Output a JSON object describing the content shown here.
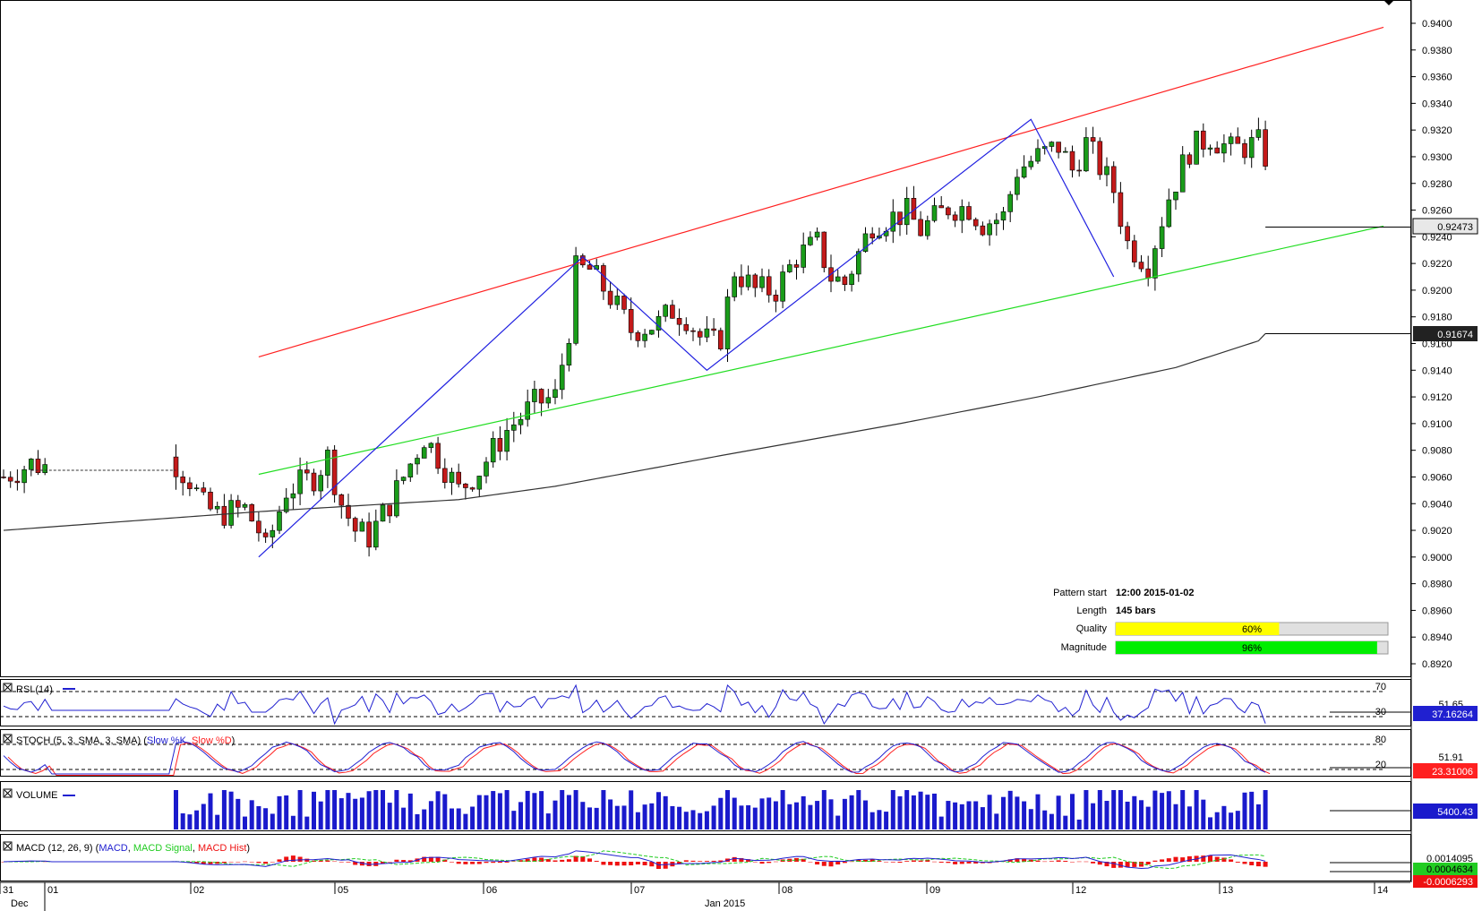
{
  "colors": {
    "bull": "#1a9c1a",
    "bear": "#c41a1a",
    "ma": "#333333",
    "channel_upper": "#ff2020",
    "channel_lower": "#22dd22",
    "zigzag": "#2020e0",
    "rsi": "#2020d0",
    "stoch_k": "#2020d0",
    "stoch_d": "#ff2020",
    "volume": "#1a1acc",
    "macd": "#2020d0",
    "macd_signal": "#22cc22",
    "macd_hist": "#ee1111",
    "quality": "#ffff00",
    "magnitude": "#00ee00"
  },
  "price_axis": {
    "ticks": [
      "0.9400",
      "0.9380",
      "0.9360",
      "0.9340",
      "0.9320",
      "0.9300",
      "0.9280",
      "0.9260",
      "0.9240",
      "0.9220",
      "0.9200",
      "0.9180",
      "0.9160",
      "0.9140",
      "0.9120",
      "0.9100",
      "0.9080",
      "0.9060",
      "0.9040",
      "0.9020",
      "0.9000",
      "0.8980",
      "0.8960",
      "0.8940",
      "0.8920"
    ],
    "current_price": "0.92473",
    "ma_value": "0.91674"
  },
  "pattern_info": {
    "start_label": "Pattern start",
    "start_value": "12:00 2015-01-02",
    "length_label": "Length",
    "length_value": "145 bars",
    "quality_label": "Quality",
    "quality_value": "60%",
    "quality_fraction": 0.6,
    "magnitude_label": "Magnitude",
    "magnitude_value": "96%",
    "magnitude_fraction": 0.96
  },
  "rsi_panel": {
    "title": "RSI (14)",
    "level_high": "70",
    "level_low": "30",
    "mid_value": "51.65",
    "current": "37.16264"
  },
  "stoch_panel": {
    "title_prefix": "STOCH (5, 3, SMA, 3, SMA) (",
    "k_label": "Slow %K",
    "sep": ", ",
    "d_label": "Slow %D",
    "title_suffix": ")",
    "level_high": "80",
    "level_low": "20",
    "mid_value": "51.91",
    "current": "23.31006"
  },
  "volume_panel": {
    "title": "VOLUME",
    "current": "5400.43"
  },
  "macd_panel": {
    "title_prefix": "MACD (12, 26, 9) (",
    "macd_label": "MACD",
    "sep": ", ",
    "signal_label": "MACD Signal",
    "hist_label": "MACD Hist",
    "title_suffix": ")",
    "upper_value": "0.0014095",
    "signal_value": "0.0004634",
    "hist_value": "-0.0006293"
  },
  "x_axis": {
    "day_labels": [
      "31",
      "01",
      "02",
      "05",
      "06",
      "07",
      "08",
      "09",
      "12",
      "13",
      "14"
    ],
    "month_labels": [
      "Dec",
      "Jan 2015"
    ]
  },
  "chart_data": {
    "type": "candlestick",
    "instrument_period": "hourly",
    "ylim": [
      0.891,
      0.941
    ],
    "pattern": "ascending channel",
    "channel_upper": {
      "from": [
        0.915
      ],
      "to": [
        0.9397
      ]
    },
    "channel_lower": {
      "from": [
        0.9062
      ],
      "to": [
        0.9248
      ]
    },
    "zigzag_pivots": [
      0.9,
      0.9225,
      0.914,
      0.9328,
      0.921
    ],
    "last_price": 0.92473,
    "ma_last": 0.91674,
    "rsi_last": 37.16264,
    "stoch_last": 23.31006,
    "volume_last": 5400.43,
    "macd_values": [
      0.0014095,
      0.0004634,
      -0.0006293
    ]
  }
}
